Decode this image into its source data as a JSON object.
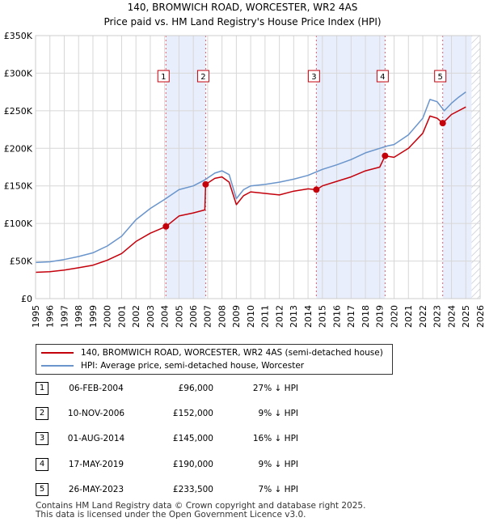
{
  "chart_data": {
    "type": "line",
    "title": "140, BROMWICH ROAD, WORCESTER, WR2 4AS",
    "subtitle": "Price paid vs. HM Land Registry's House Price Index (HPI)",
    "xlim": [
      1995,
      2026
    ],
    "ylim": [
      0,
      350000
    ],
    "x_ticks": [
      "1995",
      "1996",
      "1997",
      "1998",
      "1999",
      "2000",
      "2001",
      "2002",
      "2003",
      "2004",
      "2005",
      "2006",
      "2007",
      "2008",
      "2009",
      "2010",
      "2011",
      "2012",
      "2013",
      "2014",
      "2015",
      "2016",
      "2017",
      "2018",
      "2019",
      "2020",
      "2021",
      "2022",
      "2023",
      "2024",
      "2025",
      "2026"
    ],
    "y_ticks": [
      {
        "value": 0,
        "label": "£0"
      },
      {
        "value": 50000,
        "label": "£50K"
      },
      {
        "value": 100000,
        "label": "£100K"
      },
      {
        "value": 150000,
        "label": "£150K"
      },
      {
        "value": 200000,
        "label": "£200K"
      },
      {
        "value": 250000,
        "label": "£250K"
      },
      {
        "value": 300000,
        "label": "£300K"
      },
      {
        "value": 350000,
        "label": "£350K"
      }
    ],
    "grid": true,
    "series": [
      {
        "name": "HPI: Average price, semi-detached house, Worcester",
        "color": "#6a95cc",
        "x": [
          1995.0,
          1996.0,
          1997.0,
          1998.0,
          1999.0,
          2000.0,
          2001.0,
          2002.0,
          2003.0,
          2004.0,
          2005.0,
          2006.0,
          2006.8,
          2007.5,
          2008.0,
          2008.5,
          2009.0,
          2009.5,
          2010.0,
          2011.0,
          2012.0,
          2013.0,
          2014.0,
          2015.0,
          2016.0,
          2017.0,
          2018.0,
          2019.0,
          2019.5,
          2020.0,
          2021.0,
          2022.0,
          2022.5,
          2023.0,
          2023.5,
          2024.0,
          2024.5,
          2025.0
        ],
        "y": [
          48000,
          49000,
          52000,
          56000,
          61000,
          70000,
          83000,
          105000,
          120000,
          132000,
          145000,
          150000,
          158000,
          167000,
          170000,
          165000,
          133000,
          145000,
          150000,
          152000,
          155000,
          159000,
          164000,
          172000,
          178000,
          185000,
          194000,
          200000,
          203000,
          205000,
          218000,
          240000,
          265000,
          262000,
          250000,
          260000,
          268000,
          275000
        ]
      },
      {
        "name": "140, BROMWICH ROAD, WORCESTER, WR2 4AS (semi-detached house)",
        "color": "#c4000b",
        "x": [
          1995.0,
          1996.0,
          1997.0,
          1998.0,
          1999.0,
          2000.0,
          2001.0,
          2002.0,
          2003.0,
          2004.09,
          2005.0,
          2006.0,
          2006.8,
          2006.86,
          2007.5,
          2008.0,
          2008.5,
          2009.0,
          2009.5,
          2010.0,
          2011.0,
          2012.0,
          2013.0,
          2014.0,
          2014.58,
          2015.0,
          2016.0,
          2017.0,
          2018.0,
          2019.0,
          2019.37,
          2020.0,
          2021.0,
          2022.0,
          2022.5,
          2023.0,
          2023.39,
          2024.0,
          2025.0
        ],
        "y": [
          35000,
          35800,
          38000,
          41000,
          44500,
          51000,
          60000,
          76000,
          87000,
          96000,
          110000,
          114000,
          118000,
          152000,
          160000,
          162000,
          155000,
          125000,
          137000,
          142000,
          140000,
          138000,
          143000,
          146000,
          145000,
          150000,
          156000,
          162000,
          170000,
          175000,
          190000,
          188000,
          200000,
          220000,
          243000,
          240000,
          233500,
          245000,
          255000
        ]
      }
    ],
    "sales": [
      {
        "label": "1",
        "year": 2004.09,
        "price": 96000
      },
      {
        "label": "2",
        "year": 2006.86,
        "price": 152000
      },
      {
        "label": "3",
        "year": 2014.58,
        "price": 145000
      },
      {
        "label": "4",
        "year": 2019.37,
        "price": 190000
      },
      {
        "label": "5",
        "year": 2023.39,
        "price": 233500
      }
    ],
    "shaded_ranges": [
      [
        2004.09,
        2006.86
      ],
      [
        2014.58,
        2019.37
      ],
      [
        2023.39,
        2025.4
      ]
    ],
    "hatched_range": [
      2025.4,
      2026.0
    ],
    "marker_box_value": 295000
  },
  "legend": {
    "property_label": "140, BROMWICH ROAD, WORCESTER, WR2 4AS (semi-detached house)",
    "hpi_label": "HPI: Average price, semi-detached house, Worcester",
    "property_color": "#c4000b",
    "hpi_color": "#6a95cc"
  },
  "transactions": [
    {
      "num": "1",
      "date": "06-FEB-2004",
      "price": "£96,000",
      "diff": "27% ↓ HPI"
    },
    {
      "num": "2",
      "date": "10-NOV-2006",
      "price": "£152,000",
      "diff": "9% ↓ HPI"
    },
    {
      "num": "3",
      "date": "01-AUG-2014",
      "price": "£145,000",
      "diff": "16% ↓ HPI"
    },
    {
      "num": "4",
      "date": "17-MAY-2019",
      "price": "£190,000",
      "diff": "9% ↓ HPI"
    },
    {
      "num": "5",
      "date": "26-MAY-2023",
      "price": "£233,500",
      "diff": "7% ↓ HPI"
    }
  ],
  "footer": {
    "line1": "Contains HM Land Registry data © Crown copyright and database right 2025.",
    "line2": "This data is licensed under the Open Government Licence v3.0."
  }
}
